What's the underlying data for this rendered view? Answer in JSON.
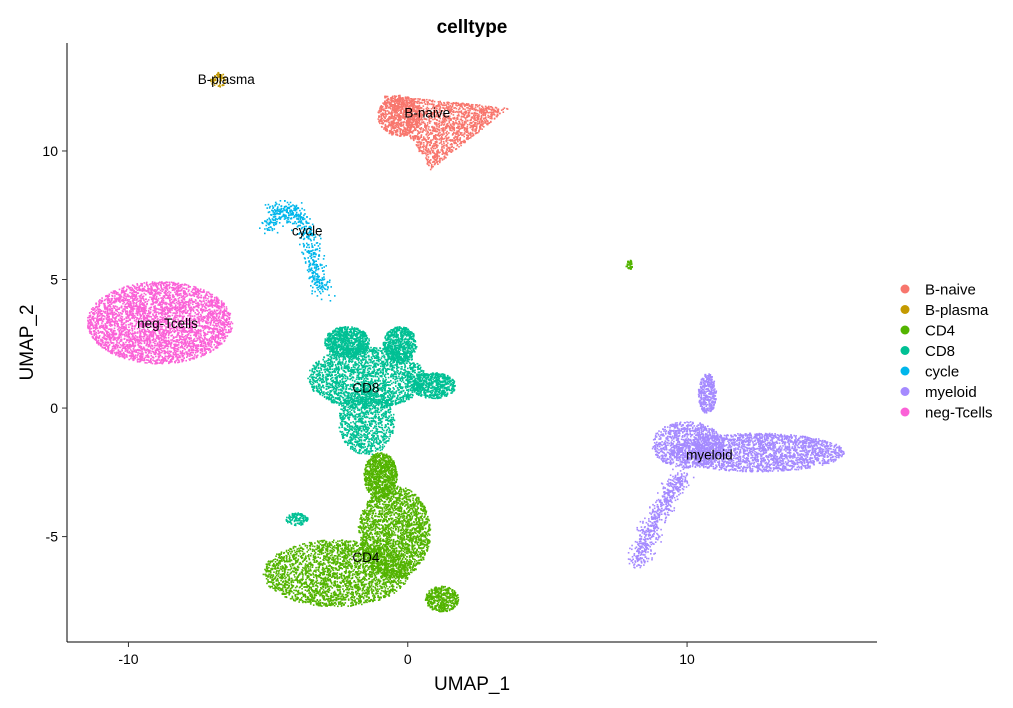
{
  "chart_data": {
    "type": "scatter",
    "title": "celltype",
    "xlabel": "UMAP_1",
    "ylabel": "UMAP_2",
    "xlim": [
      -12.2,
      16.8
    ],
    "ylim": [
      -9.1,
      14.2
    ],
    "x_ticks": [
      -10,
      0,
      10
    ],
    "y_ticks": [
      -5,
      0,
      5,
      10
    ],
    "grid": false,
    "legend_position": "right",
    "series": [
      {
        "name": "B-naive",
        "color": "#F8766D",
        "label_pos": [
          0.7,
          11.5
        ],
        "clusters": [
          {
            "kind": "triangle",
            "n": 1500,
            "points": [
              [
                -0.9,
                12.2
              ],
              [
                3.6,
                11.7
              ],
              [
                0.8,
                9.3
              ]
            ]
          },
          {
            "kind": "ellipse",
            "n": 700,
            "cx": -0.3,
            "cy": 11.4,
            "rx": 0.8,
            "ry": 0.8
          }
        ]
      },
      {
        "name": "B-plasma",
        "color": "#C49A00",
        "label_pos": [
          -6.5,
          12.8
        ],
        "clusters": [
          {
            "kind": "ellipse",
            "n": 60,
            "cx": -6.8,
            "cy": 12.8,
            "rx": 0.28,
            "ry": 0.28
          }
        ]
      },
      {
        "name": "CD4",
        "color": "#53B400",
        "label_pos": [
          -1.5,
          -5.8
        ],
        "clusters": [
          {
            "kind": "ellipse",
            "n": 2600,
            "cx": -2.6,
            "cy": -6.4,
            "rx": 2.6,
            "ry": 1.3
          },
          {
            "kind": "ellipse",
            "n": 2200,
            "cx": -0.5,
            "cy": -4.8,
            "rx": 1.3,
            "ry": 1.8
          },
          {
            "kind": "ellipse",
            "n": 900,
            "cx": -1.0,
            "cy": -2.6,
            "rx": 0.6,
            "ry": 0.9
          },
          {
            "kind": "ellipse",
            "n": 450,
            "cx": 1.2,
            "cy": -7.4,
            "rx": 0.6,
            "ry": 0.5
          },
          {
            "kind": "ellipse",
            "n": 40,
            "cx": 7.9,
            "cy": 5.6,
            "rx": 0.12,
            "ry": 0.2
          }
        ]
      },
      {
        "name": "CD8",
        "color": "#00C094",
        "label_pos": [
          -1.5,
          0.8
        ],
        "clusters": [
          {
            "kind": "ellipse",
            "n": 2100,
            "cx": -1.5,
            "cy": 1.2,
            "rx": 2.1,
            "ry": 1.2
          },
          {
            "kind": "ellipse",
            "n": 900,
            "cx": -2.2,
            "cy": 2.6,
            "rx": 0.8,
            "ry": 0.6
          },
          {
            "kind": "ellipse",
            "n": 700,
            "cx": -0.3,
            "cy": 2.5,
            "rx": 0.6,
            "ry": 0.7
          },
          {
            "kind": "ellipse",
            "n": 1000,
            "cx": -1.5,
            "cy": -0.5,
            "rx": 1.0,
            "ry": 1.3
          },
          {
            "kind": "ellipse",
            "n": 600,
            "cx": 0.9,
            "cy": 0.9,
            "rx": 0.8,
            "ry": 0.5
          },
          {
            "kind": "ellipse",
            "n": 120,
            "cx": -4.0,
            "cy": -4.3,
            "rx": 0.4,
            "ry": 0.25
          }
        ]
      },
      {
        "name": "cycle",
        "color": "#00B6EB",
        "label_pos": [
          -3.6,
          6.9
        ],
        "clusters": [
          {
            "kind": "arc",
            "n": 550,
            "points": [
              [
                -5.0,
                7.0
              ],
              [
                -4.6,
                7.8
              ],
              [
                -4.0,
                7.5
              ],
              [
                -3.5,
                6.7
              ],
              [
                -3.4,
                5.4
              ],
              [
                -3.0,
                4.5
              ]
            ]
          }
        ]
      },
      {
        "name": "myeloid",
        "color": "#A58AFF",
        "label_pos": [
          10.8,
          -1.8
        ],
        "clusters": [
          {
            "kind": "ellipse",
            "n": 2200,
            "cx": 12.5,
            "cy": -1.7,
            "rx": 3.1,
            "ry": 0.75
          },
          {
            "kind": "ellipse",
            "n": 1000,
            "cx": 10.0,
            "cy": -1.4,
            "rx": 1.3,
            "ry": 0.9
          },
          {
            "kind": "ellipse",
            "n": 350,
            "cx": 10.7,
            "cy": 0.6,
            "rx": 0.32,
            "ry": 0.8
          },
          {
            "kind": "arc",
            "n": 600,
            "points": [
              [
                9.8,
                -2.6
              ],
              [
                9.2,
                -3.6
              ],
              [
                8.6,
                -4.8
              ],
              [
                8.2,
                -6.0
              ]
            ]
          }
        ]
      },
      {
        "name": "neg-Tcells",
        "color": "#FB61D7",
        "label_pos": [
          -8.6,
          3.3
        ],
        "clusters": [
          {
            "kind": "ellipse",
            "n": 3800,
            "cx": -8.9,
            "cy": 3.35,
            "rx": 2.6,
            "ry": 1.6
          }
        ]
      }
    ]
  }
}
